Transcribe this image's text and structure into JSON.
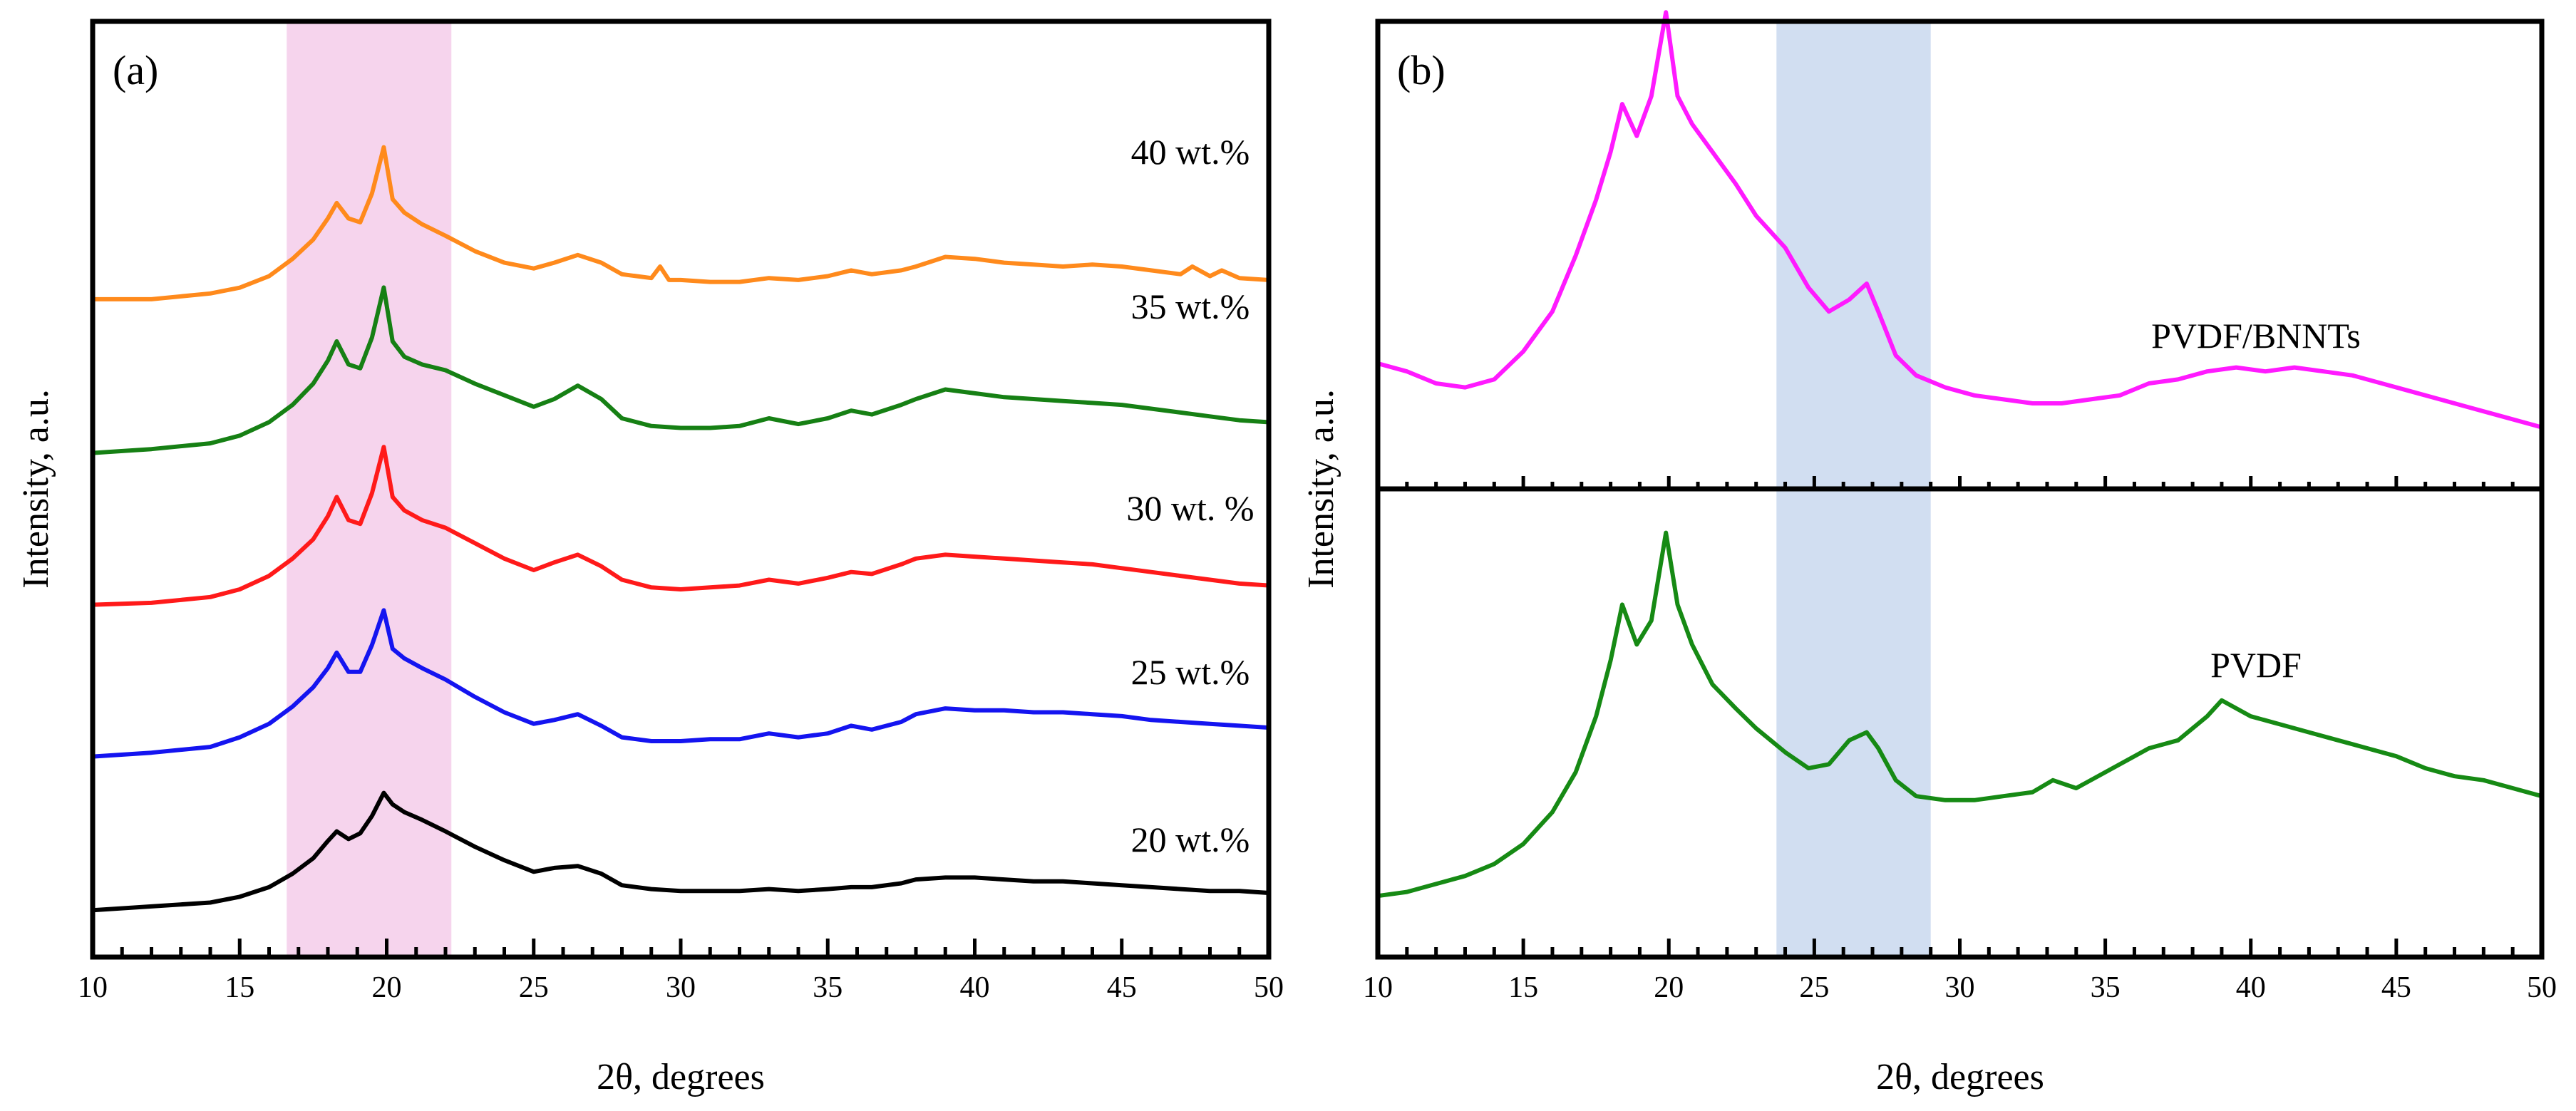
{
  "chart_data": [
    {
      "panel_label": "(a)",
      "type": "line",
      "xlabel": "2θ, degrees",
      "ylabel": "Intensity, a.u.",
      "xlim": [
        10,
        50
      ],
      "xticks": [
        "10",
        "15",
        "20",
        "25",
        "30",
        "35",
        "40",
        "45",
        "50"
      ],
      "y_ticks_shown": false,
      "highlight_band": {
        "x": [
          16.6,
          22.2
        ],
        "color": "#f5cdea"
      },
      "series": [
        {
          "name": "40 wt.%",
          "color": "#ff8a1c",
          "offset": 4,
          "x": [
            10,
            12,
            14,
            15,
            16,
            16.8,
            17.5,
            18.0,
            18.3,
            18.7,
            19.1,
            19.5,
            19.9,
            20.2,
            20.6,
            21.2,
            22,
            23,
            24,
            25,
            25.7,
            26.5,
            27.3,
            28,
            29,
            29.3,
            29.6,
            30,
            31,
            32,
            33,
            34,
            35,
            35.8,
            36.5,
            37.5,
            38,
            39,
            40,
            41,
            42,
            43,
            44,
            45,
            46,
            47,
            47.4,
            48,
            48.4,
            49,
            50
          ],
          "y": [
            0.03,
            0.03,
            0.06,
            0.09,
            0.15,
            0.24,
            0.34,
            0.45,
            0.53,
            0.45,
            0.43,
            0.58,
            0.82,
            0.55,
            0.48,
            0.42,
            0.36,
            0.28,
            0.22,
            0.19,
            0.22,
            0.26,
            0.22,
            0.16,
            0.14,
            0.2,
            0.13,
            0.13,
            0.12,
            0.12,
            0.14,
            0.13,
            0.15,
            0.18,
            0.16,
            0.18,
            0.2,
            0.25,
            0.24,
            0.22,
            0.21,
            0.2,
            0.21,
            0.2,
            0.18,
            0.16,
            0.2,
            0.15,
            0.18,
            0.14,
            0.13
          ]
        },
        {
          "name": "35 wt.%",
          "color": "#168014",
          "offset": 3,
          "x": [
            10,
            12,
            14,
            15,
            16,
            16.8,
            17.5,
            18.0,
            18.3,
            18.7,
            19.1,
            19.5,
            19.9,
            20.2,
            20.6,
            21.2,
            22,
            23,
            24,
            25,
            25.7,
            26.5,
            27.3,
            28,
            29,
            30,
            31,
            32,
            33,
            34,
            35,
            35.8,
            36.5,
            37.5,
            38,
            39,
            40,
            41,
            42,
            43,
            44,
            45,
            46,
            47,
            48,
            49,
            50
          ],
          "y": [
            0.02,
            0.04,
            0.07,
            0.11,
            0.18,
            0.27,
            0.38,
            0.5,
            0.6,
            0.48,
            0.46,
            0.62,
            0.88,
            0.6,
            0.52,
            0.48,
            0.45,
            0.38,
            0.32,
            0.26,
            0.3,
            0.37,
            0.3,
            0.2,
            0.16,
            0.15,
            0.15,
            0.16,
            0.2,
            0.17,
            0.2,
            0.24,
            0.22,
            0.27,
            0.3,
            0.35,
            0.33,
            0.31,
            0.3,
            0.29,
            0.28,
            0.27,
            0.25,
            0.23,
            0.21,
            0.19,
            0.18
          ]
        },
        {
          "name": "30 wt. %",
          "color": "#ff1a1a",
          "offset": 2,
          "x": [
            10,
            12,
            14,
            15,
            16,
            16.8,
            17.5,
            18.0,
            18.3,
            18.7,
            19.1,
            19.5,
            19.9,
            20.2,
            20.6,
            21.2,
            22,
            23,
            24,
            25,
            25.7,
            26.5,
            27.3,
            28,
            29,
            30,
            31,
            32,
            33,
            34,
            35,
            35.8,
            36.5,
            37.5,
            38,
            39,
            40,
            41,
            42,
            43,
            44,
            45,
            46,
            47,
            48,
            49,
            50
          ],
          "y": [
            0.02,
            0.03,
            0.06,
            0.1,
            0.17,
            0.26,
            0.36,
            0.48,
            0.58,
            0.46,
            0.44,
            0.6,
            0.84,
            0.58,
            0.51,
            0.46,
            0.42,
            0.34,
            0.26,
            0.2,
            0.24,
            0.28,
            0.22,
            0.15,
            0.11,
            0.1,
            0.11,
            0.12,
            0.15,
            0.13,
            0.16,
            0.19,
            0.18,
            0.23,
            0.26,
            0.28,
            0.27,
            0.26,
            0.25,
            0.24,
            0.23,
            0.21,
            0.19,
            0.17,
            0.15,
            0.13,
            0.12
          ]
        },
        {
          "name": "25 wt.%",
          "color": "#1414f0",
          "offset": 1,
          "x": [
            10,
            12,
            14,
            15,
            16,
            16.8,
            17.5,
            18.0,
            18.3,
            18.7,
            19.1,
            19.5,
            19.9,
            20.2,
            20.6,
            21.2,
            22,
            23,
            24,
            25,
            25.7,
            26.5,
            27.3,
            28,
            29,
            30,
            31,
            32,
            33,
            34,
            35,
            35.8,
            36.5,
            37.5,
            38,
            39,
            40,
            41,
            42,
            43,
            44,
            45,
            46,
            47,
            48,
            49,
            50
          ],
          "y": [
            0.02,
            0.04,
            0.07,
            0.12,
            0.19,
            0.28,
            0.38,
            0.48,
            0.56,
            0.46,
            0.46,
            0.6,
            0.78,
            0.58,
            0.53,
            0.48,
            0.42,
            0.33,
            0.25,
            0.19,
            0.21,
            0.24,
            0.18,
            0.12,
            0.1,
            0.1,
            0.11,
            0.11,
            0.14,
            0.12,
            0.14,
            0.18,
            0.16,
            0.2,
            0.24,
            0.27,
            0.26,
            0.26,
            0.25,
            0.25,
            0.24,
            0.23,
            0.21,
            0.2,
            0.19,
            0.18,
            0.17
          ]
        },
        {
          "name": "20 wt.%",
          "color": "#000000",
          "offset": 0,
          "x": [
            10,
            12,
            14,
            15,
            16,
            16.8,
            17.5,
            18.0,
            18.3,
            18.7,
            19.1,
            19.5,
            19.9,
            20.2,
            20.6,
            21.2,
            22,
            23,
            24,
            25,
            25.7,
            26.5,
            27.3,
            28,
            29,
            30,
            31,
            32,
            33,
            34,
            35,
            35.8,
            36.5,
            37.5,
            38,
            39,
            40,
            41,
            42,
            43,
            44,
            45,
            46,
            47,
            48,
            49,
            50
          ],
          "y": [
            0.01,
            0.03,
            0.05,
            0.08,
            0.13,
            0.2,
            0.28,
            0.37,
            0.42,
            0.38,
            0.41,
            0.5,
            0.62,
            0.56,
            0.52,
            0.48,
            0.42,
            0.34,
            0.27,
            0.21,
            0.23,
            0.24,
            0.2,
            0.14,
            0.12,
            0.11,
            0.11,
            0.11,
            0.12,
            0.11,
            0.12,
            0.13,
            0.13,
            0.15,
            0.17,
            0.18,
            0.18,
            0.17,
            0.16,
            0.16,
            0.15,
            0.14,
            0.13,
            0.12,
            0.11,
            0.11,
            0.1
          ]
        }
      ]
    },
    {
      "panel_label": "(b)",
      "type": "line",
      "xlabel": "2θ, degrees",
      "ylabel": "Intensity, a.u.",
      "xlim": [
        10,
        50
      ],
      "xticks": [
        "10",
        "15",
        "20",
        "25",
        "30",
        "35",
        "40",
        "45",
        "50"
      ],
      "y_ticks_shown": false,
      "highlight_band": {
        "x": [
          23.7,
          29.0
        ],
        "color": "#c9d8ee"
      },
      "subplots": [
        {
          "name": "PVDF/BNNTs",
          "color": "#ff1aff",
          "ylim": [
            0,
            1
          ],
          "x": [
            10,
            11,
            12,
            13,
            14,
            15,
            16,
            16.8,
            17.5,
            18.0,
            18.4,
            18.9,
            19.4,
            19.9,
            20.3,
            20.8,
            21.5,
            22.3,
            23,
            24,
            24.8,
            25.5,
            26.2,
            26.8,
            27.2,
            27.8,
            28.5,
            29.5,
            30.5,
            31.5,
            32.5,
            33.5,
            34.5,
            35.5,
            36.5,
            37.5,
            38.5,
            39.5,
            40.5,
            41.5,
            42.5,
            43.5,
            44.5,
            45.5,
            46.5,
            47.5,
            48.5,
            49.5,
            50
          ],
          "y": [
            0.25,
            0.23,
            0.2,
            0.19,
            0.21,
            0.28,
            0.38,
            0.52,
            0.66,
            0.78,
            0.9,
            0.82,
            0.92,
            1.13,
            0.92,
            0.85,
            0.78,
            0.7,
            0.62,
            0.54,
            0.44,
            0.38,
            0.41,
            0.45,
            0.38,
            0.27,
            0.22,
            0.19,
            0.17,
            0.16,
            0.15,
            0.15,
            0.16,
            0.17,
            0.2,
            0.21,
            0.23,
            0.24,
            0.23,
            0.24,
            0.23,
            0.22,
            0.2,
            0.18,
            0.16,
            0.14,
            0.12,
            0.1,
            0.09
          ]
        },
        {
          "name": "PVDF",
          "color": "#168a14",
          "ylim": [
            0,
            1
          ],
          "x": [
            10,
            11,
            12,
            13,
            14,
            15,
            16,
            16.8,
            17.5,
            18.0,
            18.4,
            18.9,
            19.4,
            19.9,
            20.3,
            20.8,
            21.5,
            22.3,
            23,
            24,
            24.8,
            25.5,
            26.2,
            26.8,
            27.2,
            27.8,
            28.5,
            29.5,
            30.5,
            31.5,
            32.5,
            33.2,
            34,
            35,
            36,
            36.5,
            37.5,
            38.5,
            39.0,
            40,
            41,
            42,
            43,
            44,
            45,
            46,
            47,
            48,
            49,
            50
          ],
          "y": [
            0.13,
            0.14,
            0.16,
            0.18,
            0.21,
            0.26,
            0.34,
            0.44,
            0.58,
            0.72,
            0.86,
            0.76,
            0.82,
            1.04,
            0.86,
            0.76,
            0.66,
            0.6,
            0.55,
            0.49,
            0.45,
            0.46,
            0.52,
            0.54,
            0.5,
            0.42,
            0.38,
            0.37,
            0.37,
            0.38,
            0.39,
            0.42,
            0.4,
            0.44,
            0.48,
            0.5,
            0.52,
            0.58,
            0.62,
            0.58,
            0.56,
            0.54,
            0.52,
            0.5,
            0.48,
            0.45,
            0.43,
            0.42,
            0.4,
            0.38
          ]
        }
      ]
    }
  ]
}
